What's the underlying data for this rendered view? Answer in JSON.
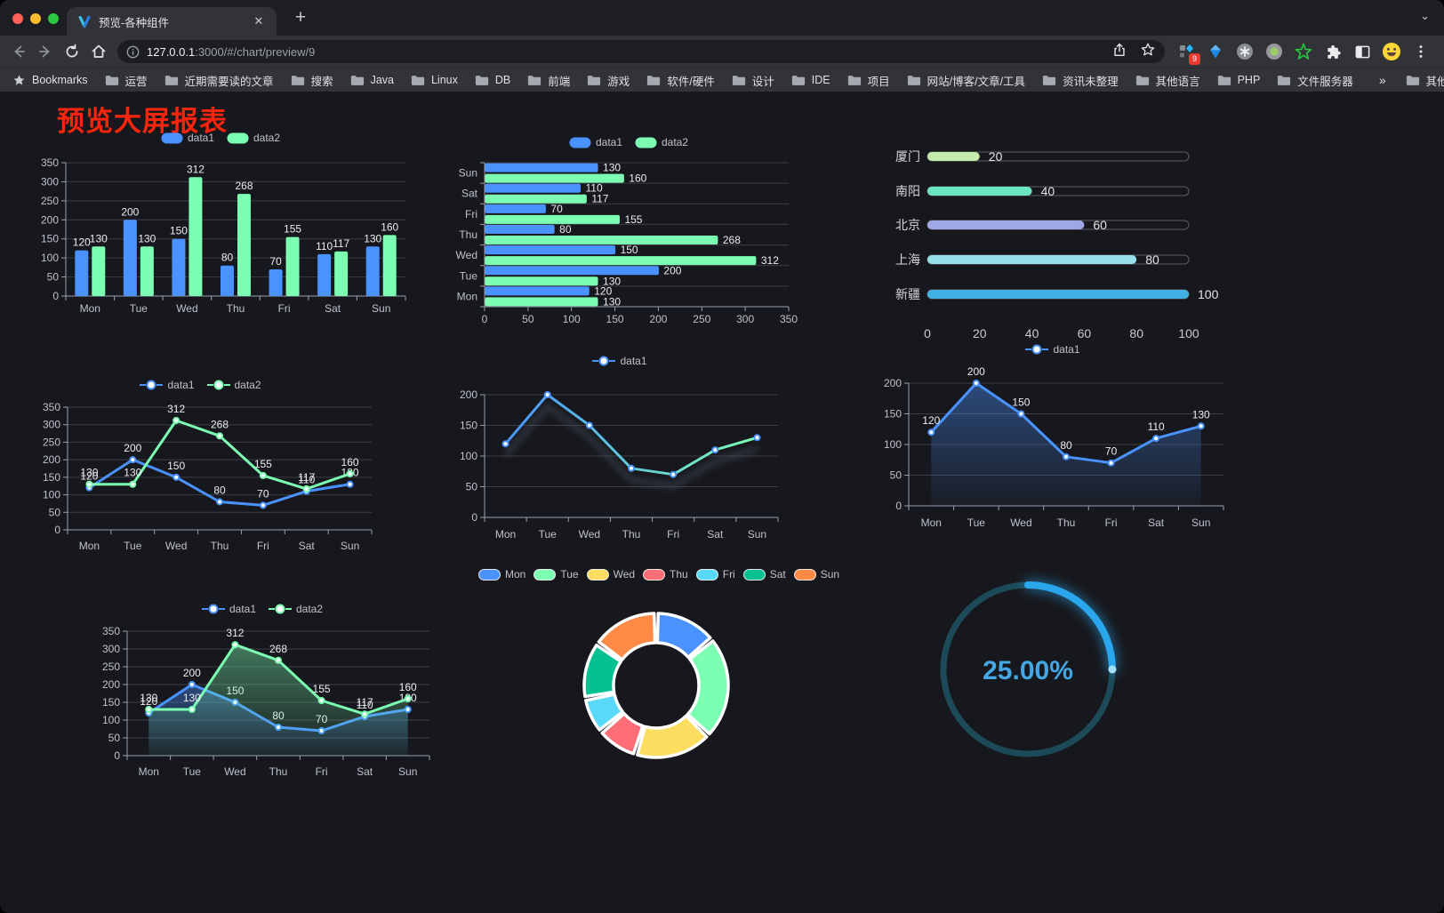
{
  "browser": {
    "tab": {
      "title": "预览-各种组件",
      "close_glyph": "✕",
      "new_tab_glyph": "+",
      "chevron_glyph": "⌄"
    },
    "url_host": "127.0.0.1",
    "url_path": ":3000/#/chart/preview/9",
    "extension_badge": "9",
    "bookmarks_label": "Bookmarks",
    "bookmarks": [
      "运营",
      "近期需要读的文章",
      "搜索",
      "Java",
      "Linux",
      "DB",
      "前端",
      "游戏",
      "软件/硬件",
      "设计",
      "IDE",
      "项目",
      "网站/博客/文章/工具",
      "资讯未整理",
      "其他语言",
      "PHP",
      "文件服务器"
    ],
    "bookmarks_overflow": "»",
    "other_bookmarks": "其他书签"
  },
  "page": {
    "title": "预览大屏报表",
    "title_color": "#f5260d",
    "background": "#17181d"
  },
  "palette": {
    "blue": "#4992ff",
    "green": "#7cffb2",
    "yellow": "#fddd60",
    "red": "#ff6e76",
    "cyan": "#58d9f9",
    "teal": "#05c091",
    "orange": "#ff8a45"
  },
  "chart_data": [
    {
      "type": "bar",
      "legend_position": "top",
      "grid": true,
      "categories": [
        "Mon",
        "Tue",
        "Wed",
        "Thu",
        "Fri",
        "Sat",
        "Sun"
      ],
      "series": [
        {
          "name": "data1",
          "color": "#4992ff",
          "values": [
            120,
            200,
            150,
            80,
            70,
            110,
            130
          ]
        },
        {
          "name": "data2",
          "color": "#7cffb2",
          "values": [
            130,
            130,
            312,
            268,
            155,
            117,
            160
          ]
        }
      ],
      "ylim": [
        0,
        350
      ],
      "ytick": 50,
      "value_labels": true
    },
    {
      "type": "bar-horizontal",
      "legend_position": "top",
      "grid": true,
      "categories": [
        "Mon",
        "Tue",
        "Wed",
        "Thu",
        "Fri",
        "Sat",
        "Sun"
      ],
      "category_order": "reversed (Sun on top)",
      "series": [
        {
          "name": "data1",
          "color": "#4992ff",
          "values": [
            120,
            200,
            150,
            80,
            70,
            110,
            130
          ]
        },
        {
          "name": "data2",
          "color": "#7cffb2",
          "values": [
            130,
            130,
            312,
            268,
            155,
            117,
            160
          ]
        }
      ],
      "xlim": [
        0,
        350
      ],
      "xtick": 50,
      "value_labels": true
    },
    {
      "type": "progress-bars",
      "rows": [
        {
          "label": "厦门",
          "value": 20,
          "color": "#c4ebad"
        },
        {
          "label": "南阳",
          "value": 40,
          "color": "#6be6c1"
        },
        {
          "label": "北京",
          "value": 60,
          "color": "#a0a7e6"
        },
        {
          "label": "上海",
          "value": 80,
          "color": "#96dee8"
        },
        {
          "label": "新疆",
          "value": 100,
          "color": "#3fb1e3"
        }
      ],
      "xlim": [
        0,
        100
      ],
      "xticks": [
        0,
        20,
        40,
        60,
        80,
        100
      ]
    },
    {
      "type": "line",
      "legend_position": "top",
      "grid": true,
      "categories": [
        "Mon",
        "Tue",
        "Wed",
        "Thu",
        "Fri",
        "Sat",
        "Sun"
      ],
      "series": [
        {
          "name": "data1",
          "color": "#4992ff",
          "values": [
            120,
            200,
            150,
            80,
            70,
            110,
            130
          ]
        },
        {
          "name": "data2",
          "color": "#7cffb2",
          "values": [
            130,
            130,
            312,
            268,
            155,
            117,
            160
          ]
        }
      ],
      "ylim": [
        0,
        350
      ],
      "ytick": 50,
      "value_labels": true
    },
    {
      "type": "line",
      "legend_position": "top",
      "grid": true,
      "categories": [
        "Mon",
        "Tue",
        "Wed",
        "Thu",
        "Fri",
        "Sat",
        "Sun"
      ],
      "series": [
        {
          "name": "data1",
          "color": "#4992ff",
          "gradient": [
            "#4992ff",
            "#7cffb2"
          ],
          "values": [
            120,
            200,
            150,
            80,
            70,
            110,
            130
          ]
        }
      ],
      "ylim": [
        0,
        200
      ],
      "ytick": 50,
      "value_labels": false,
      "line_shadow": true
    },
    {
      "type": "area",
      "legend_position": "top",
      "grid": true,
      "categories": [
        "Mon",
        "Tue",
        "Wed",
        "Thu",
        "Fri",
        "Sat",
        "Sun"
      ],
      "series": [
        {
          "name": "data1",
          "color": "#4992ff",
          "values": [
            120,
            200,
            150,
            80,
            70,
            110,
            130
          ]
        }
      ],
      "ylim": [
        0,
        200
      ],
      "ytick": 50,
      "value_labels": true
    },
    {
      "type": "area",
      "legend_position": "top",
      "grid": true,
      "categories": [
        "Mon",
        "Tue",
        "Wed",
        "Thu",
        "Fri",
        "Sat",
        "Sun"
      ],
      "series": [
        {
          "name": "data1",
          "color": "#4992ff",
          "values": [
            120,
            200,
            150,
            80,
            70,
            110,
            130
          ]
        },
        {
          "name": "data2",
          "color": "#7cffb2",
          "values": [
            130,
            130,
            312,
            268,
            155,
            117,
            160
          ]
        }
      ],
      "ylim": [
        0,
        350
      ],
      "ytick": 50,
      "value_labels": true
    },
    {
      "type": "pie",
      "legend_position": "top",
      "donut": true,
      "items": [
        {
          "name": "Mon",
          "value": 120,
          "color": "#4992ff"
        },
        {
          "name": "Tue",
          "value": 200,
          "color": "#7cffb2"
        },
        {
          "name": "Wed",
          "value": 150,
          "color": "#fddd60"
        },
        {
          "name": "Thu",
          "value": 80,
          "color": "#ff6e76"
        },
        {
          "name": "Fri",
          "value": 70,
          "color": "#58d9f9"
        },
        {
          "name": "Sat",
          "value": 110,
          "color": "#05c091"
        },
        {
          "name": "Sun",
          "value": 130,
          "color": "#ff8a45"
        }
      ]
    },
    {
      "type": "gauge",
      "value": 25,
      "label": "25.00%",
      "arc_color": "#29a6ec",
      "track_color": "#1c4a58",
      "text_color": "#42a7e4"
    }
  ]
}
